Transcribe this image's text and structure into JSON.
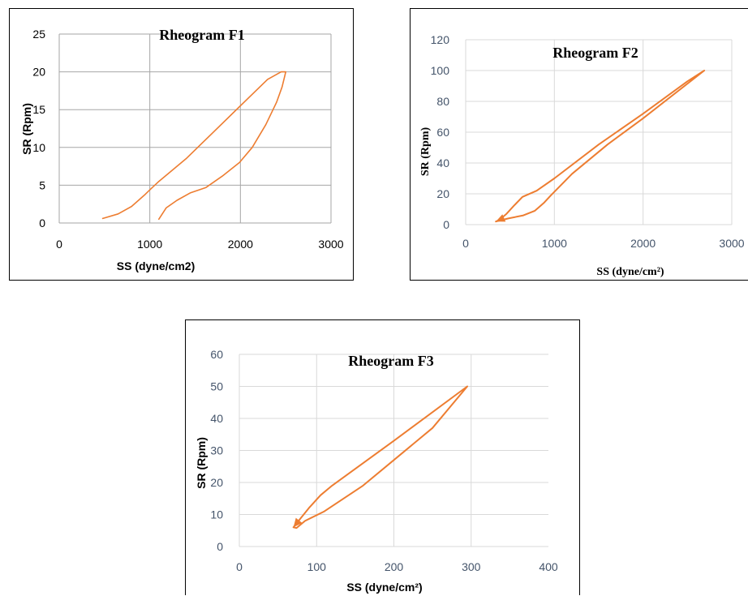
{
  "colors": {
    "series": "#ed7d31",
    "tick_text_f1": "#000000",
    "tick_text": "#44546a"
  },
  "chart_data": [
    {
      "type": "line",
      "title": "Rheogram F1",
      "xlabel": "SS (dyne/cm2)",
      "ylabel": "SR (Rpm)",
      "xlim": [
        0,
        3000
      ],
      "ylim": [
        0,
        25
      ],
      "xticks": [
        "0",
        "1000",
        "2000",
        "3000"
      ],
      "yticks": [
        "0",
        "5",
        "10",
        "15",
        "20",
        "25"
      ],
      "grid": true,
      "arrow": false,
      "series": [
        {
          "values": [
            [
              1100,
              0.5
            ],
            [
              1180,
              2
            ],
            [
              1300,
              3
            ],
            [
              1450,
              4
            ],
            [
              1620,
              4.7
            ],
            [
              1800,
              6.2
            ],
            [
              1990,
              8
            ],
            [
              2130,
              10
            ],
            [
              2280,
              13
            ],
            [
              2400,
              16
            ],
            [
              2460,
              18
            ],
            [
              2490,
              19.5
            ],
            [
              2500,
              20
            ],
            [
              2450,
              20
            ],
            [
              2300,
              19
            ],
            [
              2000,
              15.5
            ],
            [
              1700,
              12
            ],
            [
              1400,
              8.5
            ],
            [
              1100,
              5.5
            ],
            [
              1010,
              4.5
            ],
            [
              950,
              3.8
            ],
            [
              800,
              2.2
            ],
            [
              650,
              1.2
            ],
            [
              480,
              0.6
            ]
          ]
        }
      ]
    },
    {
      "type": "line",
      "title": "Rheogram F2",
      "xlabel": "SS (dyne/cm²)",
      "ylabel": "SR (Rpm)",
      "xlim": [
        0,
        3000
      ],
      "ylim": [
        0,
        120
      ],
      "xticks": [
        "0",
        "1000",
        "2000",
        "3000"
      ],
      "yticks": [
        "0",
        "20",
        "40",
        "60",
        "80",
        "100",
        "120"
      ],
      "grid": true,
      "arrow": true,
      "series": [
        {
          "values": [
            [
              2690,
              100
            ],
            [
              2500,
              93
            ],
            [
              2000,
              72
            ],
            [
              1500,
              52
            ],
            [
              1000,
              30
            ],
            [
              800,
              22
            ],
            [
              640,
              18
            ],
            [
              540,
              12
            ],
            [
              460,
              7
            ],
            [
              380,
              3
            ],
            [
              340,
              2
            ],
            [
              480,
              4
            ],
            [
              650,
              6
            ],
            [
              780,
              9
            ],
            [
              880,
              14
            ],
            [
              960,
              19
            ],
            [
              1200,
              33
            ],
            [
              1600,
              52
            ],
            [
              2000,
              69
            ],
            [
              2690,
              100
            ]
          ]
        }
      ]
    },
    {
      "type": "line",
      "title": "Rheogram F3",
      "xlabel": "SS (dyne/cm²)",
      "ylabel": "SR (Rpm)",
      "xlim": [
        0,
        400
      ],
      "ylim": [
        0,
        60
      ],
      "xticks": [
        "0",
        "100",
        "200",
        "300"
      ],
      "extra_xtick": "400",
      "yticks": [
        "0",
        "10",
        "20",
        "30",
        "40",
        "50",
        "60"
      ],
      "grid": true,
      "arrow": true,
      "series": [
        {
          "values": [
            [
              295,
              50
            ],
            [
              200,
              33
            ],
            [
              120,
              19
            ],
            [
              105,
              16
            ],
            [
              90,
              12
            ],
            [
              80,
              9
            ],
            [
              70,
              6
            ],
            [
              74,
              5.8
            ],
            [
              85,
              8
            ],
            [
              110,
              11
            ],
            [
              160,
              19
            ],
            [
              200,
              27
            ],
            [
              250,
              37
            ],
            [
              295,
              50
            ]
          ]
        }
      ]
    }
  ]
}
